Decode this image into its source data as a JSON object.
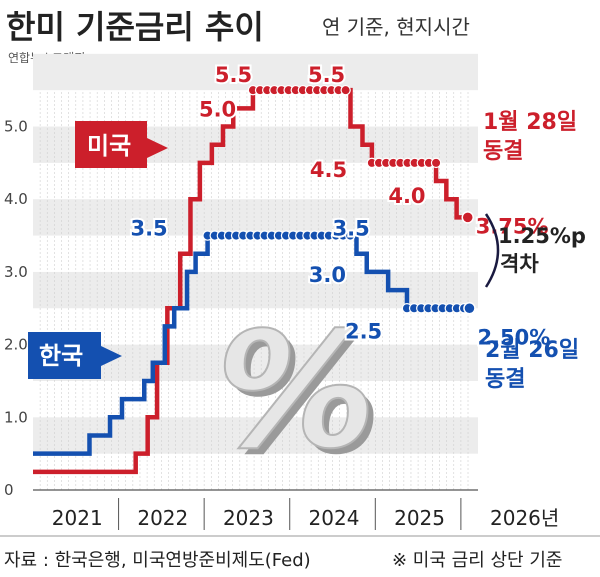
{
  "header": {
    "title": "한미 기준금리 추이",
    "subtitle": "연 기준, 현지시간",
    "agency": "연합뉴스그래픽"
  },
  "footer": {
    "source": "자료 : 한국은행, 미국연방준비제도(Fed)",
    "note": "※ 미국 금리 상단 기준"
  },
  "colors": {
    "us": "#cc1f2b",
    "kr": "#1450b0",
    "text": "#222222",
    "grid_band": "#ececec"
  },
  "chart_data": {
    "type": "line",
    "title": "한미 기준금리 추이",
    "subtitle": "연 기준, 현지시간",
    "y_ticks": [
      "0",
      "1.0",
      "2.0",
      "3.0",
      "4.0",
      "5.0"
    ],
    "ylim": [
      0,
      5.75
    ],
    "x_ticks": [
      "2021",
      "2022",
      "2023",
      "2024",
      "2025",
      "2026년"
    ],
    "xlim": [
      2021.0,
      2026.2
    ],
    "watermark": "%",
    "series": [
      {
        "name": "미국",
        "color": "#cc1f2b",
        "points": [
          [
            2021.0,
            0.25
          ],
          [
            2022.2,
            0.5
          ],
          [
            2022.34,
            1.0
          ],
          [
            2022.45,
            1.75
          ],
          [
            2022.57,
            2.5
          ],
          [
            2022.72,
            3.25
          ],
          [
            2022.84,
            4.0
          ],
          [
            2022.95,
            4.5
          ],
          [
            2023.09,
            4.75
          ],
          [
            2023.22,
            5.0
          ],
          [
            2023.34,
            5.25
          ],
          [
            2023.57,
            5.5
          ],
          [
            2024.71,
            5.0
          ],
          [
            2024.85,
            4.75
          ],
          [
            2024.96,
            4.5
          ],
          [
            2025.71,
            4.25
          ],
          [
            2025.83,
            4.0
          ],
          [
            2025.95,
            3.75
          ],
          [
            2026.08,
            3.75
          ]
        ],
        "labels": [
          {
            "text": "5.0",
            "x": 2023.22,
            "y": 5.0
          },
          {
            "text": "5.5",
            "x": 2023.57,
            "y": 5.5
          },
          {
            "text": "5.5",
            "x": 2024.4,
            "y": 5.5
          },
          {
            "text": "4.5",
            "x": 2024.96,
            "y": 4.5
          },
          {
            "text": "4.0",
            "x": 2025.83,
            "y": 4.0
          },
          {
            "text": "3.75%",
            "x": 2026.08,
            "y": 3.75
          }
        ],
        "tag": "미국",
        "status": [
          "1월 28일",
          "동결"
        ]
      },
      {
        "name": "한국",
        "color": "#1450b0",
        "points": [
          [
            2021.0,
            0.5
          ],
          [
            2021.66,
            0.75
          ],
          [
            2021.9,
            1.0
          ],
          [
            2022.04,
            1.25
          ],
          [
            2022.3,
            1.5
          ],
          [
            2022.4,
            1.75
          ],
          [
            2022.54,
            2.25
          ],
          [
            2022.65,
            2.5
          ],
          [
            2022.8,
            3.0
          ],
          [
            2022.9,
            3.25
          ],
          [
            2023.04,
            3.5
          ],
          [
            2024.78,
            3.25
          ],
          [
            2024.9,
            3.0
          ],
          [
            2025.15,
            2.75
          ],
          [
            2025.37,
            2.5
          ],
          [
            2026.1,
            2.5
          ]
        ],
        "labels": [
          {
            "text": "3.5",
            "x": 2022.7,
            "y": 3.5
          },
          {
            "text": "3.5",
            "x": 2024.5,
            "y": 3.5
          },
          {
            "text": "3.0",
            "x": 2024.9,
            "y": 3.0
          },
          {
            "text": "2.5",
            "x": 2025.37,
            "y": 2.5
          },
          {
            "text": "2.50%",
            "x": 2026.1,
            "y": 2.5
          }
        ],
        "tag": "한국",
        "status": [
          "2월 26일",
          "동결"
        ]
      }
    ],
    "annotations": [
      {
        "text": "1.25%p"
      },
      {
        "text": "격차"
      }
    ]
  }
}
